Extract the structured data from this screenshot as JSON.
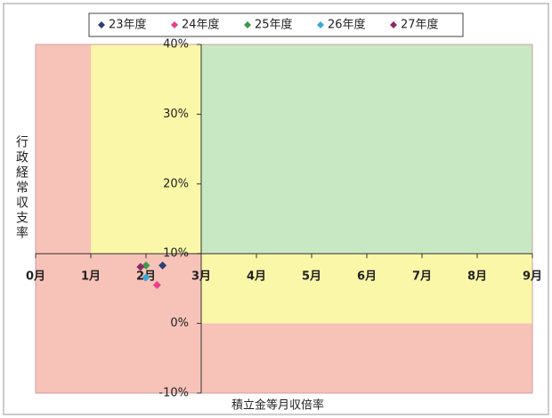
{
  "chart_data": {
    "type": "scatter",
    "x_label": "積立金等月収倍率",
    "y_label": "行政経常収支率",
    "xlim": [
      0,
      9
    ],
    "ylim": [
      -10,
      40
    ],
    "xticks": [
      {
        "value": 0,
        "label": "0月"
      },
      {
        "value": 1,
        "label": "1月"
      },
      {
        "value": 2,
        "label": "2月"
      },
      {
        "value": 3,
        "label": "3月"
      },
      {
        "value": 4,
        "label": "4月"
      },
      {
        "value": 5,
        "label": "5月"
      },
      {
        "value": 6,
        "label": "6月"
      },
      {
        "value": 7,
        "label": "7月"
      },
      {
        "value": 8,
        "label": "8月"
      },
      {
        "value": 9,
        "label": "9月"
      }
    ],
    "yticks": [
      {
        "value": 40,
        "label": "40%"
      },
      {
        "value": 30,
        "label": "30%"
      },
      {
        "value": 20,
        "label": "20%"
      },
      {
        "value": 10,
        "label": "10%"
      },
      {
        "value": 0,
        "label": "0%"
      },
      {
        "value": -10,
        "label": "-10%"
      }
    ],
    "x_axis_at": 10,
    "y_axis_at": 3,
    "regions": [
      {
        "x": [
          0,
          1
        ],
        "y": [
          10,
          40
        ],
        "color": "#f7c2b8"
      },
      {
        "x": [
          0,
          3
        ],
        "y": [
          -10,
          10
        ],
        "color": "#f7c2b8"
      },
      {
        "x": [
          1,
          3
        ],
        "y": [
          10,
          40
        ],
        "color": "#fbf7a8"
      },
      {
        "x": [
          3,
          9
        ],
        "y": [
          10,
          40
        ],
        "color": "#c8e8c4"
      },
      {
        "x": [
          3,
          9
        ],
        "y": [
          0,
          10
        ],
        "color": "#fbf7a8"
      },
      {
        "x": [
          3,
          9
        ],
        "y": [
          -10,
          0
        ],
        "color": "#f7c2b8"
      }
    ],
    "series": [
      {
        "name": "23年度",
        "color": "#2b3f7a",
        "x": [
          2.3
        ],
        "values": [
          8.3
        ]
      },
      {
        "name": "24年度",
        "color": "#e8408c",
        "x": [
          2.2
        ],
        "values": [
          5.5
        ]
      },
      {
        "name": "25年度",
        "color": "#3a9a48",
        "x": [
          2.0
        ],
        "values": [
          8.3
        ]
      },
      {
        "name": "26年度",
        "color": "#3aa8d8",
        "x": [
          2.0
        ],
        "values": [
          6.6
        ]
      },
      {
        "name": "27年度",
        "color": "#8a2a68",
        "x": [
          1.9
        ],
        "values": [
          8.1
        ]
      }
    ]
  }
}
